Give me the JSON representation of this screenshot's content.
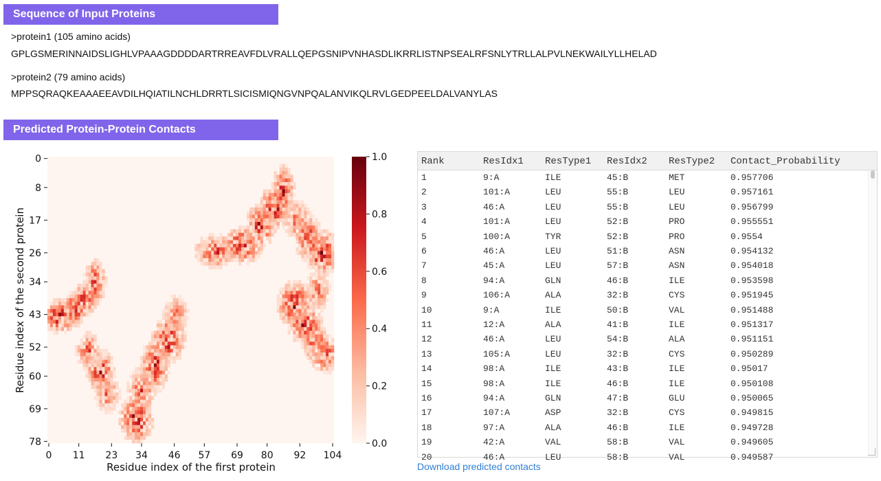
{
  "sections": {
    "sequence_header": "Sequence of Input Proteins",
    "contacts_header": "Predicted Protein-Protein Contacts"
  },
  "proteins": [
    {
      "header": ">protein1 (105 amino acids)",
      "sequence": "GPLGSMERINNAIDSLIGHLVPAAAGDDDDARTRREAVFDLVRALLQEPGSNIPVNHASDLIKRRLISTNPSEALRFSNLYTRLLALPVLNEKWAILYLLHELAD"
    },
    {
      "header": ">protein2 (79 amino acids)",
      "sequence": "MPPSQRAQKEAAAEEAVDILHQIATILNCHLDRRTLSICISMIQNGVNPQALANVIKQLRVLGEDPEELDALVANYLAS"
    }
  ],
  "table": {
    "columns": [
      "Rank",
      "ResIdx1",
      "ResType1",
      "ResIdx2",
      "ResType2",
      "Contact_Probability"
    ],
    "rows": [
      [
        "1",
        "9:A",
        "ILE",
        "45:B",
        "MET",
        "0.957706"
      ],
      [
        "2",
        "101:A",
        "LEU",
        "55:B",
        "LEU",
        "0.957161"
      ],
      [
        "3",
        "46:A",
        "LEU",
        "55:B",
        "LEU",
        "0.956799"
      ],
      [
        "4",
        "101:A",
        "LEU",
        "52:B",
        "PRO",
        "0.955551"
      ],
      [
        "5",
        "100:A",
        "TYR",
        "52:B",
        "PRO",
        "0.9554"
      ],
      [
        "6",
        "46:A",
        "LEU",
        "51:B",
        "ASN",
        "0.954132"
      ],
      [
        "7",
        "45:A",
        "LEU",
        "57:B",
        "ASN",
        "0.954018"
      ],
      [
        "8",
        "94:A",
        "GLN",
        "46:B",
        "ILE",
        "0.953598"
      ],
      [
        "9",
        "106:A",
        "ALA",
        "32:B",
        "CYS",
        "0.951945"
      ],
      [
        "10",
        "9:A",
        "ILE",
        "50:B",
        "VAL",
        "0.951488"
      ],
      [
        "11",
        "12:A",
        "ALA",
        "41:B",
        "ILE",
        "0.951317"
      ],
      [
        "12",
        "46:A",
        "LEU",
        "54:B",
        "ALA",
        "0.951151"
      ],
      [
        "13",
        "105:A",
        "LEU",
        "32:B",
        "CYS",
        "0.950289"
      ],
      [
        "14",
        "98:A",
        "ILE",
        "43:B",
        "ILE",
        "0.95017"
      ],
      [
        "15",
        "98:A",
        "ILE",
        "46:B",
        "ILE",
        "0.950108"
      ],
      [
        "16",
        "94:A",
        "GLN",
        "47:B",
        "GLU",
        "0.950065"
      ],
      [
        "17",
        "107:A",
        "ASP",
        "32:B",
        "CYS",
        "0.949815"
      ],
      [
        "18",
        "97:A",
        "ALA",
        "46:B",
        "ILE",
        "0.949728"
      ],
      [
        "19",
        "42:A",
        "VAL",
        "58:B",
        "VAL",
        "0.949605"
      ],
      [
        "20",
        "46:A",
        "LEU",
        "58:B",
        "VAL",
        "0.949587"
      ]
    ]
  },
  "download_link": "Download predicted contacts",
  "chart_data": {
    "type": "heatmap",
    "xlabel": "Residue index of the first protein",
    "ylabel": "Residue index of the second protein",
    "x_ticks": [
      "0",
      "11",
      "23",
      "34",
      "46",
      "57",
      "69",
      "80",
      "92",
      "104"
    ],
    "y_ticks": [
      "0",
      "8",
      "17",
      "26",
      "34",
      "43",
      "52",
      "60",
      "69",
      "78"
    ],
    "x_range": [
      0,
      104
    ],
    "y_range": [
      0,
      78
    ],
    "colorbar": {
      "min": 0.0,
      "max": 1.0,
      "ticks": [
        "0.0",
        "0.2",
        "0.4",
        "0.6",
        "0.8",
        "1.0"
      ]
    },
    "colormap": [
      "#fff5f0",
      "#fcbba1",
      "#fb6a4a",
      "#cb181d",
      "#67000d"
    ],
    "contact_bands": [
      {
        "x_from": 0,
        "x_to": 8,
        "y_from": 41,
        "y_to": 46,
        "peak": 0.95
      },
      {
        "x_from": 7,
        "x_to": 12,
        "y_from": 39,
        "y_to": 44,
        "peak": 0.9
      },
      {
        "x_from": 11,
        "x_to": 16,
        "y_from": 36,
        "y_to": 41,
        "peak": 0.85
      },
      {
        "x_from": 15,
        "x_to": 19,
        "y_from": 30,
        "y_to": 38,
        "peak": 0.8
      },
      {
        "x_from": 12,
        "x_to": 17,
        "y_from": 50,
        "y_to": 56,
        "peak": 0.7
      },
      {
        "x_from": 16,
        "x_to": 22,
        "y_from": 55,
        "y_to": 62,
        "peak": 0.9
      },
      {
        "x_from": 19,
        "x_to": 24,
        "y_from": 62,
        "y_to": 68,
        "peak": 0.6
      },
      {
        "x_from": 28,
        "x_to": 36,
        "y_from": 68,
        "y_to": 76,
        "peak": 0.95
      },
      {
        "x_from": 31,
        "x_to": 37,
        "y_from": 60,
        "y_to": 68,
        "peak": 0.7
      },
      {
        "x_from": 36,
        "x_to": 42,
        "y_from": 52,
        "y_to": 62,
        "peak": 0.85
      },
      {
        "x_from": 40,
        "x_to": 48,
        "y_from": 46,
        "y_to": 54,
        "peak": 0.95
      },
      {
        "x_from": 44,
        "x_to": 49,
        "y_from": 40,
        "y_to": 46,
        "peak": 0.6
      },
      {
        "x_from": 56,
        "x_to": 66,
        "y_from": 23,
        "y_to": 28,
        "peak": 0.85
      },
      {
        "x_from": 66,
        "x_to": 76,
        "y_from": 21,
        "y_to": 27,
        "peak": 0.9
      },
      {
        "x_from": 74,
        "x_to": 81,
        "y_from": 15,
        "y_to": 22,
        "peak": 0.9
      },
      {
        "x_from": 79,
        "x_to": 86,
        "y_from": 10,
        "y_to": 17,
        "peak": 0.95
      },
      {
        "x_from": 84,
        "x_to": 88,
        "y_from": 4,
        "y_to": 14,
        "peak": 0.85
      },
      {
        "x_from": 88,
        "x_to": 94,
        "y_from": 14,
        "y_to": 20,
        "peak": 0.7
      },
      {
        "x_from": 92,
        "x_to": 98,
        "y_from": 18,
        "y_to": 26,
        "peak": 0.8
      },
      {
        "x_from": 96,
        "x_to": 104,
        "y_from": 22,
        "y_to": 30,
        "peak": 0.95
      },
      {
        "x_from": 86,
        "x_to": 94,
        "y_from": 36,
        "y_to": 44,
        "peak": 0.95
      },
      {
        "x_from": 90,
        "x_to": 98,
        "y_from": 43,
        "y_to": 49,
        "peak": 0.9
      },
      {
        "x_from": 95,
        "x_to": 100,
        "y_from": 47,
        "y_to": 54,
        "peak": 0.85
      },
      {
        "x_from": 98,
        "x_to": 104,
        "y_from": 51,
        "y_to": 57,
        "peak": 0.8
      },
      {
        "x_from": 96,
        "x_to": 101,
        "y_from": 33,
        "y_to": 40,
        "peak": 0.6
      }
    ]
  }
}
